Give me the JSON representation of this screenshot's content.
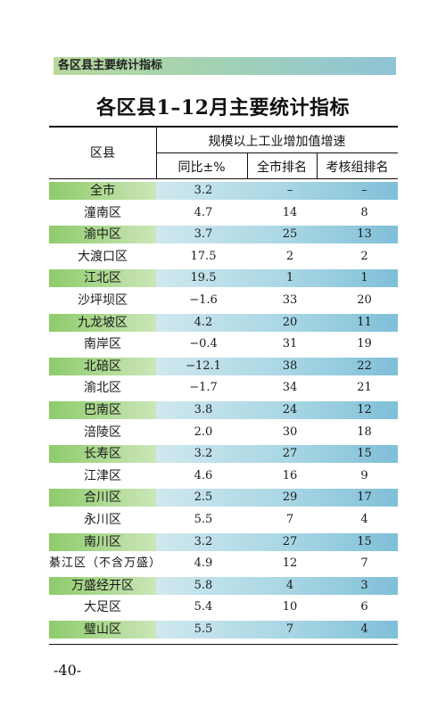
{
  "header": {
    "label": "各区县主要统计指标"
  },
  "title": "各区县1–12月主要统计指标",
  "table": {
    "col_district": "区县",
    "group_header": "规模以上工业增加值增速",
    "col_yoy": "同比±%",
    "col_city_rank": "全市排名",
    "col_group_rank": "考核组排名",
    "rows": [
      {
        "district": "全市",
        "yoy": "3.2",
        "city_rank": "–",
        "group_rank": "–",
        "shaded": true
      },
      {
        "district": "潼南区",
        "yoy": "4.7",
        "city_rank": "14",
        "group_rank": "8",
        "shaded": false
      },
      {
        "district": "渝中区",
        "yoy": "3.7",
        "city_rank": "25",
        "group_rank": "13",
        "shaded": true
      },
      {
        "district": "大渡口区",
        "yoy": "17.5",
        "city_rank": "2",
        "group_rank": "2",
        "shaded": false
      },
      {
        "district": "江北区",
        "yoy": "19.5",
        "city_rank": "1",
        "group_rank": "1",
        "shaded": true
      },
      {
        "district": "沙坪坝区",
        "yoy": "−1.6",
        "city_rank": "33",
        "group_rank": "20",
        "shaded": false
      },
      {
        "district": "九龙坡区",
        "yoy": "4.2",
        "city_rank": "20",
        "group_rank": "11",
        "shaded": true
      },
      {
        "district": "南岸区",
        "yoy": "−0.4",
        "city_rank": "31",
        "group_rank": "19",
        "shaded": false
      },
      {
        "district": "北碚区",
        "yoy": "−12.1",
        "city_rank": "38",
        "group_rank": "22",
        "shaded": true
      },
      {
        "district": "渝北区",
        "yoy": "−1.7",
        "city_rank": "34",
        "group_rank": "21",
        "shaded": false
      },
      {
        "district": "巴南区",
        "yoy": "3.8",
        "city_rank": "24",
        "group_rank": "12",
        "shaded": true
      },
      {
        "district": "涪陵区",
        "yoy": "2.0",
        "city_rank": "30",
        "group_rank": "18",
        "shaded": false
      },
      {
        "district": "长寿区",
        "yoy": "3.2",
        "city_rank": "27",
        "group_rank": "15",
        "shaded": true
      },
      {
        "district": "江津区",
        "yoy": "4.6",
        "city_rank": "16",
        "group_rank": "9",
        "shaded": false
      },
      {
        "district": "合川区",
        "yoy": "2.5",
        "city_rank": "29",
        "group_rank": "17",
        "shaded": true
      },
      {
        "district": "永川区",
        "yoy": "5.5",
        "city_rank": "7",
        "group_rank": "4",
        "shaded": false
      },
      {
        "district": "南川区",
        "yoy": "3.2",
        "city_rank": "27",
        "group_rank": "15",
        "shaded": true
      },
      {
        "district": "綦江区（不含万盛）",
        "yoy": "4.9",
        "city_rank": "12",
        "group_rank": "7",
        "shaded": false
      },
      {
        "district": "万盛经开区",
        "yoy": "5.8",
        "city_rank": "4",
        "group_rank": "3",
        "shaded": true
      },
      {
        "district": "大足区",
        "yoy": "5.4",
        "city_rank": "10",
        "group_rank": "6",
        "shaded": false
      },
      {
        "district": "璧山区",
        "yoy": "5.5",
        "city_rank": "7",
        "group_rank": "4",
        "shaded": true
      }
    ]
  },
  "footer": {
    "page_number": "-40-"
  }
}
